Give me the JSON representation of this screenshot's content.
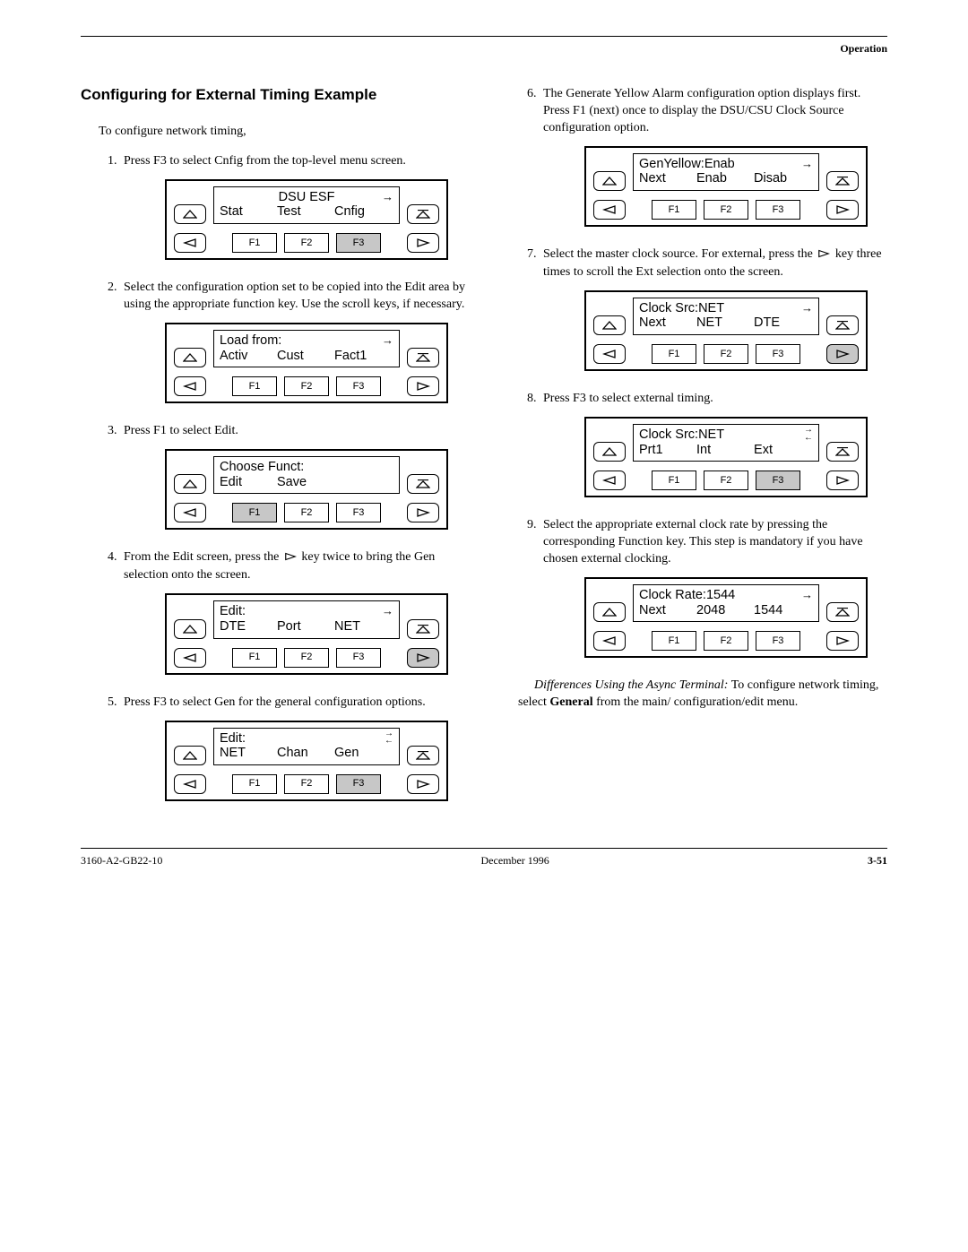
{
  "header": {
    "section": "Operation"
  },
  "title": "Configuring for External Timing Example",
  "intro": "To configure network timing,",
  "steps_left": [
    {
      "n": 1,
      "text": "Press F3 to select Cnfig from the top-level menu screen."
    },
    {
      "n": 2,
      "text": "Select the configuration option set to be copied into the Edit area by using the appropriate function key. Use the scroll keys, if necessary."
    },
    {
      "n": 3,
      "text": "Press F1 to select Edit."
    },
    {
      "n": 4,
      "text_pre": "From the Edit screen, press the ",
      "text_post": " key twice to bring the Gen selection onto the screen."
    },
    {
      "n": 5,
      "text": "Press F3 to select Gen for the general configuration options."
    }
  ],
  "steps_right": [
    {
      "n": 6,
      "text": "The Generate Yellow Alarm configuration option displays first. Press F1 (next) once to display the DSU/CSU Clock Source configuration option."
    },
    {
      "n": 7,
      "text_pre": "Select the master clock source. For external, press the ",
      "text_post": " key three times to scroll the Ext selection onto the screen."
    },
    {
      "n": 8,
      "text": "Press F3 to select external timing."
    },
    {
      "n": 9,
      "text": "Select the appropriate external clock rate by pressing the corresponding Function key. This step is mandatory if you have chosen external clocking."
    }
  ],
  "panels": {
    "p1": {
      "title_center": "DSU ESF",
      "opts": [
        "Stat",
        "Test",
        "Cnfig"
      ],
      "arrow": "right",
      "hi_f": 3
    },
    "p2": {
      "line1": "Load from:",
      "opts": [
        "Activ",
        "Cust",
        "Fact1"
      ],
      "arrow": "right",
      "hi_f": 0
    },
    "p3": {
      "line1": "Choose Funct:",
      "opts": [
        "Edit",
        "Save",
        ""
      ],
      "arrow": "none",
      "hi_f": 1
    },
    "p4": {
      "line1": "Edit:",
      "opts": [
        "DTE",
        "Port",
        "NET"
      ],
      "arrow": "right",
      "hi_f": 0,
      "hi_right_tri": true
    },
    "p5": {
      "line1": "Edit:",
      "opts": [
        "NET",
        "Chan",
        "Gen"
      ],
      "arrow": "both",
      "hi_f": 3
    },
    "p6": {
      "line1": "GenYellow:Enab",
      "opts": [
        "Next",
        "Enab",
        "Disab"
      ],
      "arrow": "right",
      "hi_f": 0
    },
    "p7": {
      "line1": "Clock Src:NET",
      "opts": [
        "Next",
        "NET",
        "DTE"
      ],
      "arrow": "right",
      "hi_f": 0,
      "hi_right_tri": true
    },
    "p8": {
      "line1": "Clock Src:NET",
      "opts": [
        "Prt1",
        "Int",
        "Ext"
      ],
      "arrow": "both",
      "hi_f": 3
    },
    "p9": {
      "line1": "Clock Rate:1544",
      "opts": [
        "Next",
        "2048",
        "1544"
      ],
      "arrow": "right",
      "hi_f": 0
    }
  },
  "fkeys": [
    "F1",
    "F2",
    "F3"
  ],
  "tail_para_parts": {
    "ital": "Differences Using the Async Terminal:",
    "a": " To configure network timing, select ",
    "bold": "General",
    "b": " from the main/ configuration/edit menu."
  },
  "footer": {
    "left": "3160-A2-GB22-10",
    "center": "December 1996",
    "right": "3-51"
  },
  "svg": {
    "black": "#000000",
    "grey": "#c7c7c7"
  }
}
